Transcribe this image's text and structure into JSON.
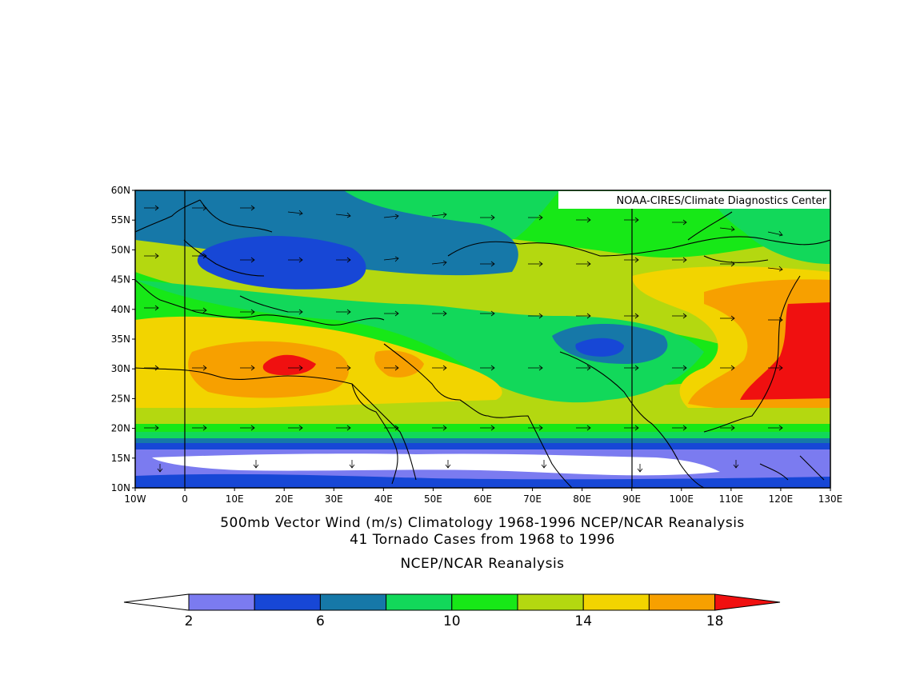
{
  "chart_data": {
    "type": "map",
    "credit": "NOAA-CIRES/Climate Diagnostics Center",
    "title_line1": "500mb Vector Wind (m/s) Climatology 1968-1996 NCEP/NCAR Reanalysis",
    "title_line2": "41 Tornado Cases from 1968 to 1996",
    "subtitle": "NCEP/NCAR Reanalysis",
    "units": "m/s",
    "lon_range": [
      -10,
      130
    ],
    "lat_range": [
      10,
      60
    ],
    "x_ticks": [
      "10W",
      "0",
      "10E",
      "20E",
      "30E",
      "40E",
      "50E",
      "60E",
      "70E",
      "80E",
      "90E",
      "100E",
      "110E",
      "120E",
      "130E"
    ],
    "y_ticks": [
      "10N",
      "15N",
      "20N",
      "25N",
      "30N",
      "35N",
      "40N",
      "45N",
      "50N",
      "55N",
      "60N"
    ],
    "reference_lines_lon": [
      0,
      90
    ],
    "colorbar": {
      "levels": [
        2,
        4,
        6,
        8,
        10,
        12,
        14,
        16,
        18
      ],
      "labels": [
        "2",
        "6",
        "10",
        "14",
        "18"
      ],
      "label_levels": [
        2,
        6,
        10,
        14,
        18
      ],
      "colors": [
        "#ffffff",
        "#7b7bf0",
        "#1747d6",
        "#1678a8",
        "#12d85a",
        "#17e817",
        "#b4d810",
        "#f2d400",
        "#f7a000",
        "#f01010"
      ]
    },
    "contour_bands": [
      {
        "level": "18+",
        "color": "#f01010",
        "region": "20E 30N; 120-130E 25-40N"
      },
      {
        "level": "16-18",
        "color": "#f7a000",
        "region": "10-35E 25-32N; 40-50E 27-32N; 110-130E 25-45N"
      },
      {
        "level": "6-8",
        "color": "#1747d6",
        "region": "5-40E 45-52N; 75-90E 32-36N"
      },
      {
        "level": "2-4",
        "color": "#ffffff",
        "region": "10-15N band, 0-120E"
      }
    ]
  }
}
